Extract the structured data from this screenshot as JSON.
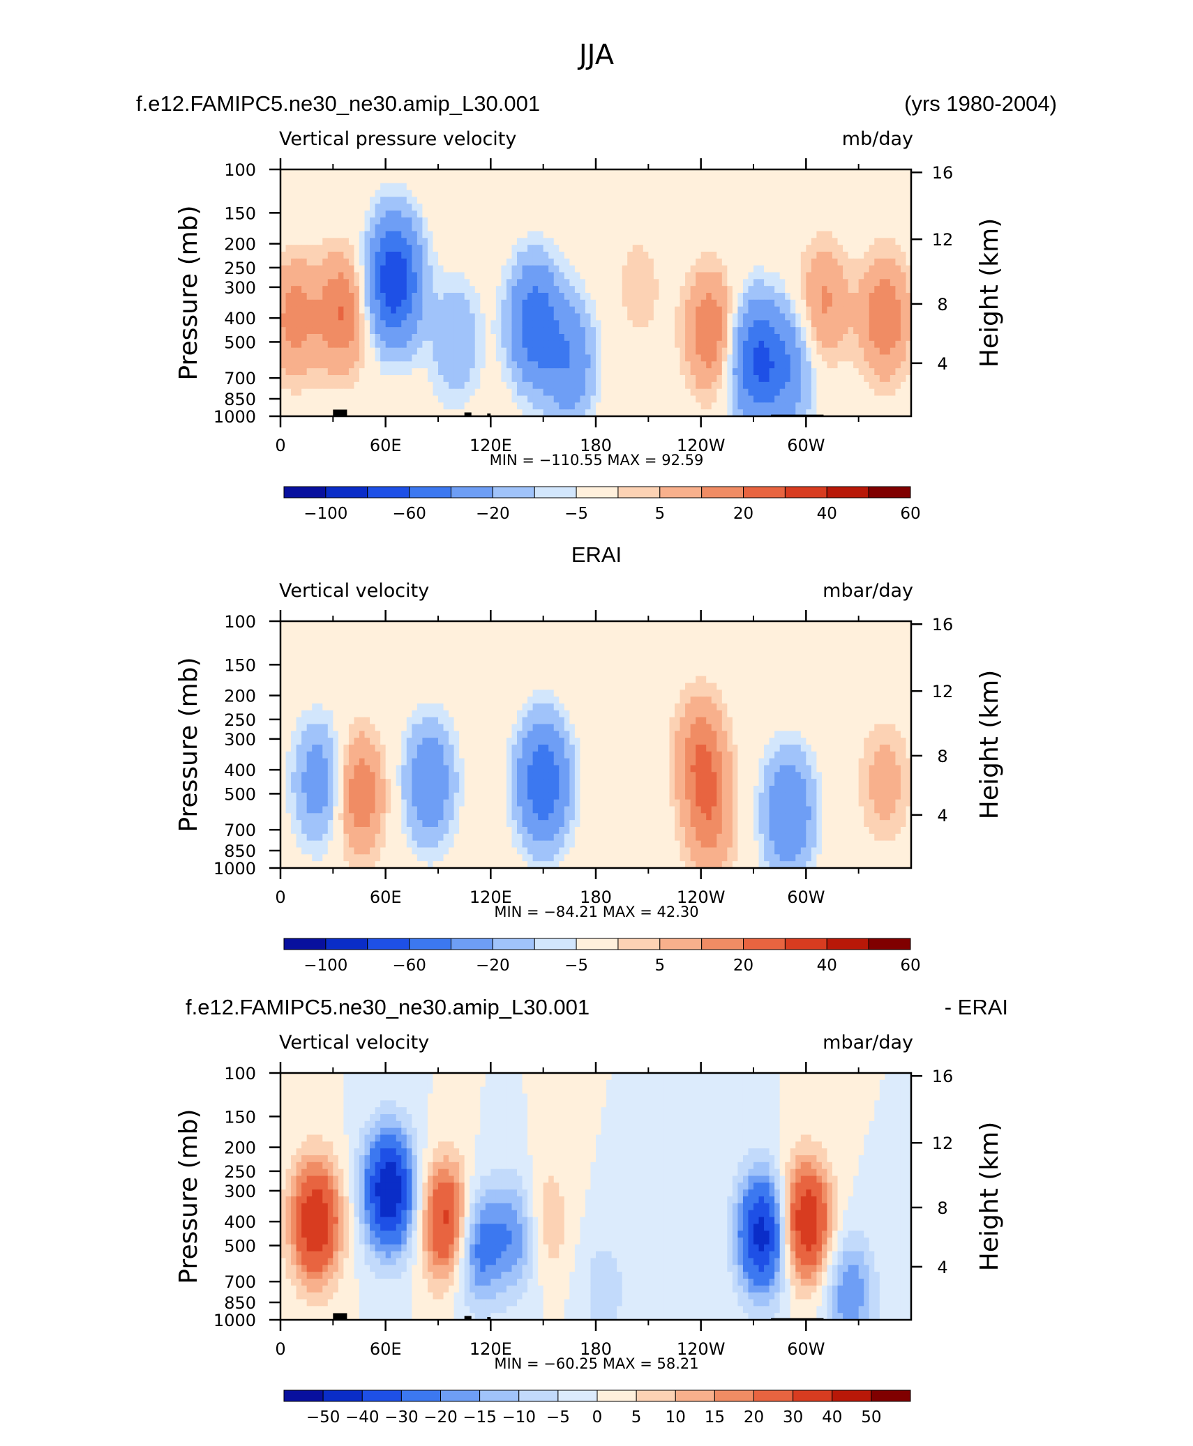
{
  "figure_title": "JJA",
  "colors": {
    "scale_ab": [
      "#08109e",
      "#0a2dc8",
      "#1e50e6",
      "#3c78f0",
      "#6e9ef5",
      "#a0c3fa",
      "#d2e6fc",
      "#fff0dc",
      "#fcd2b4",
      "#f8b08c",
      "#f08c64",
      "#e86440",
      "#d83c20",
      "#b81808",
      "#800000"
    ],
    "scale_diff": [
      "#08109e",
      "#0a2dc8",
      "#1e50e6",
      "#3c78f0",
      "#6e9ef5",
      "#a0c3fa",
      "#c2dafb",
      "#dcebfc",
      "#fff0dc",
      "#fcd2b4",
      "#f8b08c",
      "#f08c64",
      "#e86440",
      "#d83c20",
      "#b81808",
      "#800000"
    ]
  },
  "panels": [
    {
      "case_left": "f.e12.FAMIPC5.ne30_ne30.amip_L30.001",
      "case_right": "(yrs 1980-2004)",
      "case_center": "",
      "var_name": "Vertical pressure velocity",
      "units": "mb/day",
      "ylabel": "Pressure (mb)",
      "ylabel_right": "Height (km)",
      "min_max": "MIN = −110.55   MAX =   92.59",
      "colorbar_labels": [
        "−100",
        "−60",
        "−20",
        "−5",
        "5",
        "20",
        "40",
        "60"
      ],
      "scale": "scale_ab"
    },
    {
      "case_left": "",
      "case_right": "",
      "case_center": "ERAI",
      "var_name": "Vertical velocity",
      "units": "mbar/day",
      "ylabel": "Pressure (mb)",
      "ylabel_right": "Height (km)",
      "min_max": "MIN = −84.21   MAX =   42.30",
      "colorbar_labels": [
        "−100",
        "−60",
        "−20",
        "−5",
        "5",
        "20",
        "40",
        "60"
      ],
      "scale": "scale_ab"
    },
    {
      "case_left": "f.e12.FAMIPC5.ne30_ne30.amip_L30.001",
      "case_right": "- ERAI",
      "case_center": "",
      "var_name": "Vertical velocity",
      "units": "mbar/day",
      "ylabel": "Pressure (mb)",
      "ylabel_right": "Height (km)",
      "min_max": "MIN = −60.25   MAX =   58.21",
      "colorbar_labels": [
        "−50",
        "−40",
        "−30",
        "−20",
        "−15",
        "−10",
        "−5",
        "0",
        "5",
        "10",
        "15",
        "20",
        "30",
        "40",
        "50"
      ],
      "scale": "scale_diff"
    }
  ],
  "chart_data": [
    {
      "type": "heatmap",
      "title": "f.e12.FAMIPC5.ne30_ne30.amip_L30.001",
      "subtitle": "Vertical pressure velocity",
      "xlabel": "",
      "ylabel": "Pressure (mb)",
      "y2label": "Height (km)",
      "x_ticks": [
        "0",
        "60E",
        "120E",
        "180",
        "120W",
        "60W"
      ],
      "y_ticks": [
        "100",
        "150",
        "200",
        "250",
        "300",
        "400",
        "500",
        "700",
        "850",
        "1000"
      ],
      "y2_ticks": [
        "16",
        "12",
        "8",
        "4"
      ],
      "xlim": [
        0,
        360
      ],
      "ylim": [
        1000,
        100
      ],
      "y_scale": "log",
      "levels": [
        -100,
        -80,
        -60,
        -40,
        -20,
        -10,
        -5,
        5,
        10,
        20,
        30,
        40,
        50,
        60
      ],
      "min": -110.55,
      "max": 92.59,
      "anomalies": [
        {
          "lon": 8,
          "p": 400,
          "value": 25
        },
        {
          "lon": 35,
          "p": 380,
          "value": 30
        },
        {
          "lon": 65,
          "p": 280,
          "value": -80
        },
        {
          "lon": 100,
          "p": 500,
          "value": -20
        },
        {
          "lon": 145,
          "p": 420,
          "value": -55
        },
        {
          "lon": 165,
          "p": 600,
          "value": -35
        },
        {
          "lon": 205,
          "p": 300,
          "value": 8
        },
        {
          "lon": 245,
          "p": 450,
          "value": 30
        },
        {
          "lon": 272,
          "p": 600,
          "value": -60
        },
        {
          "lon": 290,
          "p": 650,
          "value": -30
        },
        {
          "lon": 310,
          "p": 350,
          "value": 22
        },
        {
          "lon": 345,
          "p": 400,
          "value": 30
        }
      ]
    },
    {
      "type": "heatmap",
      "title": "ERAI",
      "subtitle": "Vertical velocity",
      "xlabel": "",
      "ylabel": "Pressure (mb)",
      "y2label": "Height (km)",
      "x_ticks": [
        "0",
        "60E",
        "120E",
        "180",
        "120W",
        "60W"
      ],
      "y_ticks": [
        "100",
        "150",
        "200",
        "250",
        "300",
        "400",
        "500",
        "700",
        "850",
        "1000"
      ],
      "y2_ticks": [
        "16",
        "12",
        "8",
        "4"
      ],
      "xlim": [
        0,
        360
      ],
      "ylim": [
        1000,
        100
      ],
      "y_scale": "log",
      "levels": [
        -100,
        -80,
        -60,
        -40,
        -20,
        -10,
        -5,
        5,
        10,
        20,
        30,
        40,
        50,
        60
      ],
      "min": -84.21,
      "max": 42.3,
      "anomalies": [
        {
          "lon": 22,
          "p": 450,
          "value": -30
        },
        {
          "lon": 45,
          "p": 500,
          "value": 30
        },
        {
          "lon": 85,
          "p": 450,
          "value": -35
        },
        {
          "lon": 150,
          "p": 450,
          "value": -60
        },
        {
          "lon": 240,
          "p": 350,
          "value": 28
        },
        {
          "lon": 245,
          "p": 650,
          "value": 22
        },
        {
          "lon": 290,
          "p": 600,
          "value": -40
        },
        {
          "lon": 345,
          "p": 450,
          "value": 15
        }
      ]
    },
    {
      "type": "heatmap",
      "title": "f.e12.FAMIPC5.ne30_ne30.amip_L30.001 - ERAI",
      "subtitle": "Vertical velocity",
      "xlabel": "",
      "ylabel": "Pressure (mb)",
      "y2label": "Height (km)",
      "x_ticks": [
        "0",
        "60E",
        "120E",
        "180",
        "120W",
        "60W"
      ],
      "y_ticks": [
        "100",
        "150",
        "200",
        "250",
        "300",
        "400",
        "500",
        "700",
        "850",
        "1000"
      ],
      "y2_ticks": [
        "16",
        "12",
        "8",
        "4"
      ],
      "xlim": [
        0,
        360
      ],
      "ylim": [
        1000,
        100
      ],
      "y_scale": "log",
      "levels": [
        -50,
        -40,
        -30,
        -20,
        -15,
        -10,
        -5,
        0,
        5,
        10,
        15,
        20,
        30,
        40,
        50
      ],
      "min": -60.25,
      "max": 58.21,
      "anomalies": [
        {
          "lon": 20,
          "p": 400,
          "value": 40
        },
        {
          "lon": 62,
          "p": 300,
          "value": -50
        },
        {
          "lon": 95,
          "p": 400,
          "value": 35
        },
        {
          "lon": 112,
          "p": 500,
          "value": -25
        },
        {
          "lon": 135,
          "p": 450,
          "value": -20
        },
        {
          "lon": 150,
          "p": 400,
          "value": 12
        },
        {
          "lon": 185,
          "p": 750,
          "value": -8
        },
        {
          "lon": 275,
          "p": 450,
          "value": -45
        },
        {
          "lon": 300,
          "p": 400,
          "value": 40
        },
        {
          "lon": 325,
          "p": 780,
          "value": -20
        }
      ]
    }
  ]
}
